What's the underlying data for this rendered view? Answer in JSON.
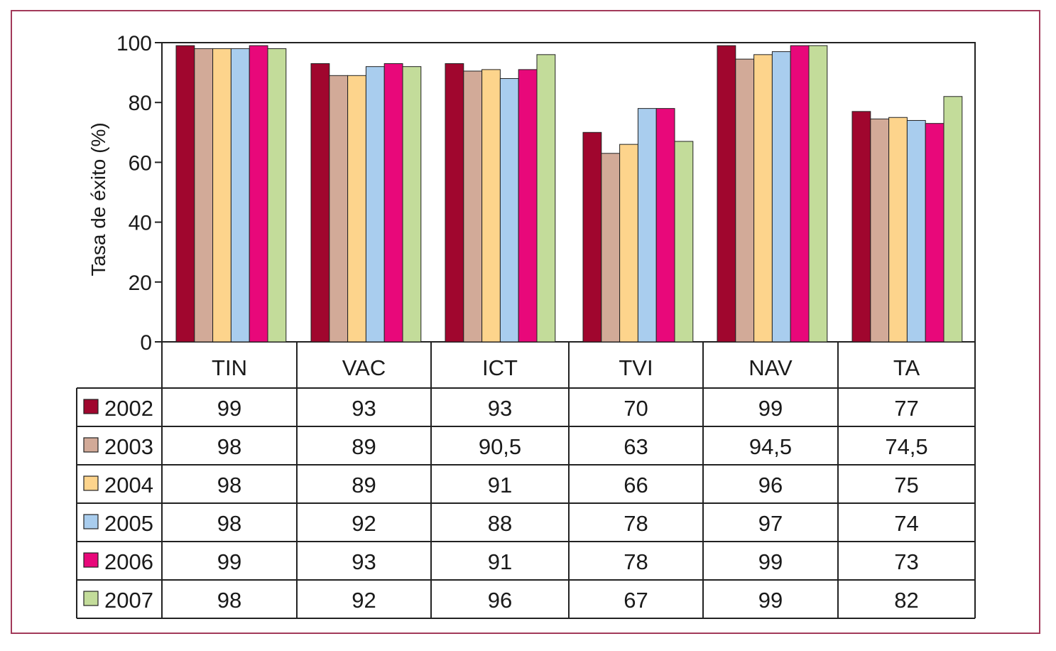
{
  "chart_data": {
    "type": "bar",
    "ylabel": "Tasa de éxito (%)",
    "ylim": [
      0,
      100
    ],
    "yticks": [
      0,
      20,
      40,
      60,
      80,
      100
    ],
    "categories": [
      "TIN",
      "VAC",
      "ICT",
      "TVI",
      "NAV",
      "TA"
    ],
    "series": [
      {
        "name": "2002",
        "color": "#a0062e",
        "values": [
          99,
          93,
          93,
          70,
          99,
          77
        ],
        "labels": [
          "99",
          "93",
          "93",
          "70",
          "99",
          "77"
        ]
      },
      {
        "name": "2003",
        "color": "#d2aa98",
        "values": [
          98,
          89,
          90.5,
          63,
          94.5,
          74.5
        ],
        "labels": [
          "98",
          "89",
          "90,5",
          "63",
          "94,5",
          "74,5"
        ]
      },
      {
        "name": "2004",
        "color": "#fdd48c",
        "values": [
          98,
          89,
          91,
          66,
          96,
          75
        ],
        "labels": [
          "98",
          "89",
          "91",
          "66",
          "96",
          "75"
        ]
      },
      {
        "name": "2005",
        "color": "#a9cdee",
        "values": [
          98,
          92,
          88,
          78,
          97,
          74
        ],
        "labels": [
          "98",
          "92",
          "88",
          "78",
          "97",
          "74"
        ]
      },
      {
        "name": "2006",
        "color": "#e8087a",
        "values": [
          99,
          93,
          91,
          78,
          99,
          73
        ],
        "labels": [
          "99",
          "93",
          "91",
          "78",
          "99",
          "73"
        ]
      },
      {
        "name": "2007",
        "color": "#c3dc9a",
        "values": [
          98,
          92,
          96,
          67,
          99,
          82
        ],
        "labels": [
          "98",
          "92",
          "96",
          "67",
          "99",
          "82"
        ]
      }
    ],
    "grid": false,
    "legend": "table-left"
  }
}
